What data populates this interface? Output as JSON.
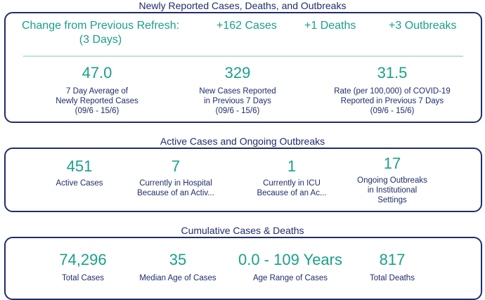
{
  "sections": {
    "newly": {
      "title": "Newly Reported Cases, Deaths, and Outbreaks",
      "change_label_line1": "Change from Previous Refresh:",
      "change_label_line2": "(3 Days)",
      "change_cases": "+162 Cases",
      "change_deaths": "+1 Deaths",
      "change_outbreaks": "+3 Outbreaks",
      "metrics": [
        {
          "value": "47.0",
          "label1": "7 Day Average of",
          "label2": "Newly Reported Cases",
          "label3": "(09/6 - 15/6)"
        },
        {
          "value": "329",
          "label1": "New Cases Reported",
          "label2": "in Previous 7 Days",
          "label3": "(09/6 - 15/6)"
        },
        {
          "value": "31.5",
          "label1": "Rate (per 100,000) of COVID-19",
          "label2": "Reported in Previous 7 Days",
          "label3": "(09/6 - 15/6)"
        }
      ]
    },
    "active": {
      "title": "Active Cases and Ongoing Outbreaks",
      "metrics": [
        {
          "value": "451",
          "label1": "Active Cases",
          "label2": "",
          "label3": ""
        },
        {
          "value": "7",
          "label1": "Currently in Hospital",
          "label2": "Because of an Activ...",
          "label3": ""
        },
        {
          "value": "1",
          "label1": "Currently in ICU",
          "label2": "Because of an Ac...",
          "label3": ""
        },
        {
          "value": "17",
          "label1": "Ongoing Outbreaks",
          "label2": "in Institutional",
          "label3": "Settings"
        }
      ]
    },
    "cumulative": {
      "title": "Cumulative Cases & Deaths",
      "metrics": [
        {
          "value": "74,296",
          "label1": "Total Cases"
        },
        {
          "value": "35",
          "label1": "Median Age of Cases"
        },
        {
          "value": "0.0 - 109 Years",
          "label1": "Age Range of Cases"
        },
        {
          "value": "817",
          "label1": "Total Deaths"
        }
      ]
    }
  },
  "colors": {
    "accent": "#1aa08a",
    "border": "#1f2d6b",
    "divider": "#bde3db"
  }
}
